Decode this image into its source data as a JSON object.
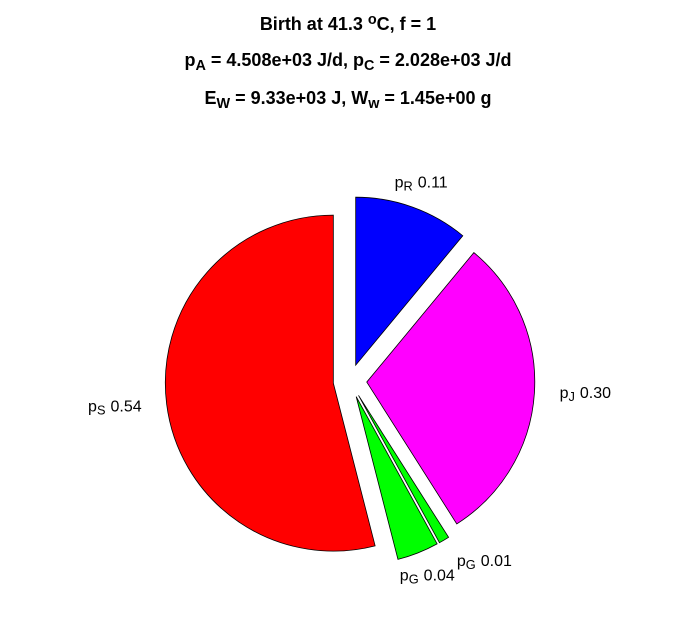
{
  "chart_data": {
    "type": "pie",
    "title": [
      [
        {
          "text": "Birth at 41.3 "
        },
        {
          "text": "o",
          "style": "sup"
        },
        {
          "text": "C, f = 1"
        }
      ],
      [
        {
          "text": "p"
        },
        {
          "text": "A",
          "style": "sub"
        },
        {
          "text": " = 4.508e+03 J/d, p"
        },
        {
          "text": "C",
          "style": "sub"
        },
        {
          "text": " = 2.028e+03 J/d"
        }
      ],
      [
        {
          "text": "E"
        },
        {
          "text": "W",
          "style": "sub"
        },
        {
          "text": " = 9.33e+03 J, W"
        },
        {
          "text": "w",
          "style": "sub"
        },
        {
          "text": " = 1.45e+00 g"
        }
      ]
    ],
    "categories": [
      [
        {
          "text": "p"
        },
        {
          "text": "R",
          "style": "sub"
        }
      ],
      [
        {
          "text": "p"
        },
        {
          "text": "J",
          "style": "sub"
        }
      ],
      [
        {
          "text": "p"
        },
        {
          "text": "G",
          "style": "sub"
        }
      ],
      [
        {
          "text": "p"
        },
        {
          "text": "G",
          "style": "sub"
        }
      ],
      [
        {
          "text": "p"
        },
        {
          "text": "S",
          "style": "sub"
        }
      ]
    ],
    "values": [
      0.11,
      0.3,
      0.01,
      0.04,
      0.54
    ],
    "value_labels": [
      "0.11",
      "0.30",
      "0.01",
      "0.04",
      "0.54"
    ],
    "colors": [
      "#0000ff",
      "#ff00ff",
      "#00ff00",
      "#00ff00",
      "#ff0000"
    ],
    "explode": true
  }
}
